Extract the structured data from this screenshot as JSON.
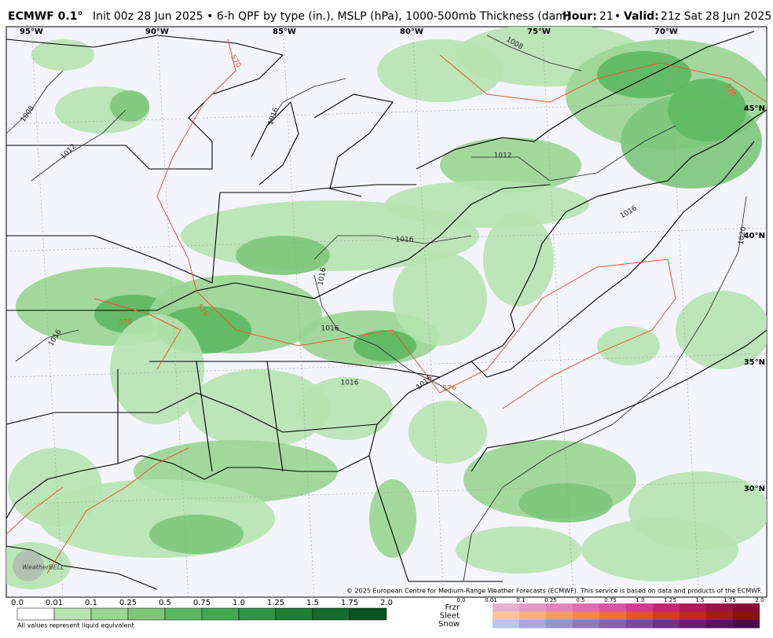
{
  "header": {
    "model": "ECMWF 0.1°",
    "description": "Init 00z 28 Jun 2025 • 6-h QPF by type (in.), MSLP (hPa), 1000-500mb Thickness (dam)",
    "hour_label": "Hour:",
    "hour": "21",
    "separator": "•",
    "valid_label": "Valid:",
    "valid": "21z Sat 28 Jun 2025"
  },
  "map": {
    "longitude_labels": [
      "95°W",
      "90°W",
      "85°W",
      "80°W",
      "75°W",
      "70°W"
    ],
    "latitude_labels": [
      "45°N",
      "40°N",
      "35°N",
      "30°N"
    ],
    "isobar_labels": [
      "1008",
      "1012",
      "1016",
      "1008",
      "1012",
      "1016",
      "1016",
      "1016",
      "1016",
      "1016",
      "1016",
      "1020",
      "1016"
    ],
    "thickness_labels": [
      "570",
      "576",
      "576",
      "570",
      "576"
    ],
    "credit": "© 2025 European Centre for Medium-Range Weather Forecasts (ECMWF). This service is based on data and products of the ECMWF.",
    "logo": "WeatherBELL"
  },
  "legend": {
    "rain_ticks": [
      "0.0",
      "0.01",
      "0.1",
      "0.25",
      "0.5",
      "0.75",
      "1.0",
      "1.25",
      "1.5",
      "1.75",
      "2.0"
    ],
    "note": "All values represent liquid equivalent",
    "ptype_rows": [
      "Frzr",
      "Sleet",
      "Snow"
    ],
    "ptype_ticks": [
      "0.0",
      "0.01",
      "0.1",
      "0.25",
      "0.5",
      "0.75",
      "1.0",
      "1.25",
      "1.5",
      "1.75",
      "2.0"
    ]
  }
}
